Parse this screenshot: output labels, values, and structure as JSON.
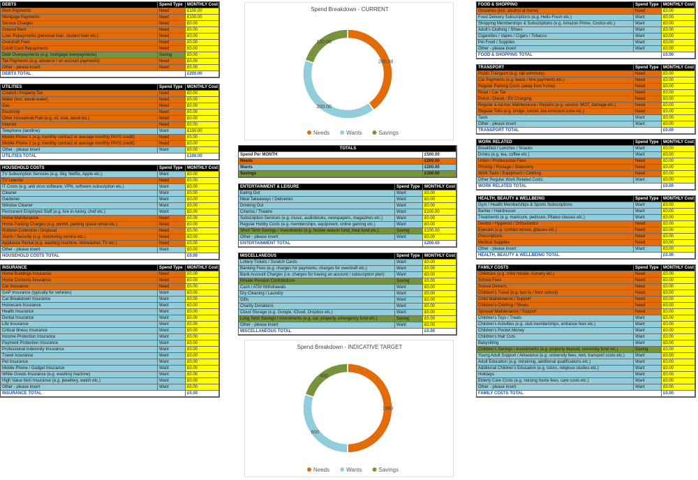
{
  "type_colors": {
    "Need": "#e36c0a",
    "Want": "#92cddc",
    "Saving": "#77933c"
  },
  "tables": [
    {
      "title": "DEBTS",
      "type_header": "Spend Type",
      "cost_header": "MONTHLY Cost",
      "rows": [
        [
          "Rent Payments",
          "Need",
          "£100.00"
        ],
        [
          "Mortgage Payments",
          "Need",
          "£100.00"
        ],
        [
          "Service Charges",
          "Need",
          "£0.00"
        ],
        [
          "Ground Rent",
          "Need",
          "£0.00"
        ],
        [
          "Loan Repayments (personal loan, student loan etc.)",
          "Need",
          "£0.00"
        ],
        [
          "Overdraft Fees",
          "Need",
          "£0.00"
        ],
        [
          "Credit Card Repayments",
          "Need",
          "£0.00"
        ],
        [
          "Debt Overpayments (e.g. mortgage overpayments)",
          "Saving",
          "£0.00"
        ],
        [
          "Tax Payments (e.g. advance / on account payments)",
          "Need",
          "£0.00"
        ],
        [
          "Other - please insert",
          "Need",
          "£0.00"
        ]
      ],
      "total": [
        "DEBTS TOTAL",
        "£200.00"
      ]
    },
    {
      "title": "UTILITIES",
      "type_header": "Spend Type",
      "cost_header": "MONTHLY Cost",
      "rows": [
        [
          "Council / Property Tax",
          "Need",
          "£0.00"
        ],
        [
          "Water (incl. waste water)",
          "Need",
          "£0.00"
        ],
        [
          "Gas",
          "Need",
          "£0.00"
        ],
        [
          "Electricity",
          "Need",
          "£0.00"
        ],
        [
          "Other Household Fuel (e.g. oil, coal, wood etc.)",
          "Need",
          "£0.00"
        ],
        [
          "Internet",
          "Need",
          "£0.00"
        ],
        [
          "Telephone (landline)",
          "Want",
          "£100.00"
        ],
        [
          "Mobile Phone 1 (e.g. monthly contract or average monthly PAYG credit)",
          "Need",
          "£0.00"
        ],
        [
          "Mobile Phone 2 (e.g. monthly contract or average monthly PAYG credit)",
          "Need",
          "£0.00"
        ],
        [
          "Other - please insert",
          "Want",
          "£0.00"
        ]
      ],
      "total": [
        "UTILITIES TOTAL",
        "£100.00"
      ]
    },
    {
      "title": "HOUSEHOLD COSTS",
      "type_header": "Spend Type",
      "cost_header": "MONTHLY Cost",
      "rows": [
        [
          "TV Subscription Services (e.g. Sky, Netflix, Apple etc.)",
          "Want",
          "£0.00"
        ],
        [
          "TV License",
          "Need",
          "£0.00"
        ],
        [
          "IT Costs (e.g. anti virus software, VPN, software subscription etc.)",
          "Want",
          "£0.00"
        ],
        [
          "Cleaner",
          "Want",
          "£0.00"
        ],
        [
          "Gardener",
          "Want",
          "£0.00"
        ],
        [
          "Window Cleaner",
          "Want",
          "£0.00"
        ],
        [
          "Permanent Employed Staff (e.g. live in nanny, chef etc.)",
          "Want",
          "£0.00"
        ],
        [
          "Home Maintenance",
          "Need",
          "£0.00"
        ],
        [
          "Home Parking Charges (e.g. permit, parking space rental etc.)",
          "Need",
          "£0.00"
        ],
        [
          "Rubbish Collection / Disposal",
          "Need",
          "£0.00"
        ],
        [
          "Alarm / Security (e.g. monitoring service etc.)",
          "Need",
          "£0.00"
        ],
        [
          "Appliance Rental (e.g. washing machine, dishwasher, TV etc.)",
          "Need",
          "£0.00"
        ],
        [
          "Other - please insert",
          "Want",
          "£0.00"
        ]
      ],
      "total": [
        "HOUSEHOLD COSTS TOTAL",
        "£0.00"
      ]
    },
    {
      "title": "INSURANCE",
      "type_header": "Spend Type",
      "cost_header": "MONTHLY Cost",
      "rows": [
        [
          "Home Buildings Insurance",
          "Need",
          "£0.00"
        ],
        [
          "Home Contents Insurance",
          "Need",
          "£0.00"
        ],
        [
          "Car Insurance",
          "Need",
          "£0.00"
        ],
        [
          "GAP Insurance (typically for vehicles)",
          "Want",
          "£0.00"
        ],
        [
          "Car Breakdown Insurance",
          "Want",
          "£0.00"
        ],
        [
          "Homecare Insurance",
          "Want",
          "£0.00"
        ],
        [
          "Health Insurance",
          "Want",
          "£0.00"
        ],
        [
          "Dental Insurance",
          "Want",
          "£0.00"
        ],
        [
          "Life Insurance",
          "Want",
          "£0.00"
        ],
        [
          "Critical Illness Insurance",
          "Want",
          "£0.00"
        ],
        [
          "Income Protection Insurance",
          "Want",
          "£0.00"
        ],
        [
          "Payment Protection Insurance",
          "Want",
          "£0.00"
        ],
        [
          "Professional Indemnity Insurance",
          "Want",
          "£0.00"
        ],
        [
          "Travel Insurance",
          "Want",
          "£0.00"
        ],
        [
          "Pet Insurance",
          "Want",
          "£0.00"
        ],
        [
          "Mobile Phone / Gadget Insurance",
          "Want",
          "£0.00"
        ],
        [
          "White Goods Insurance (e.g. washing machine)",
          "Want",
          "£0.00"
        ],
        [
          "High Value Item Insurance (e.g. jewellery, watch etc.)",
          "Want",
          "£0.00"
        ],
        [
          "Other - please insert",
          "Want",
          "£0.00"
        ]
      ],
      "total": [
        "INSURANCE TOTAL",
        "£0.00"
      ]
    },
    {
      "title": "ENTERTAINMENT & LEISURE",
      "type_header": "Spend Type",
      "cost_header": "MONTHLY Cost",
      "rows": [
        [
          "Eating Out",
          "Want",
          "£0.00"
        ],
        [
          "Meal Takeaways / Deliveries",
          "Want",
          "£0.00"
        ],
        [
          "Drinking Out",
          "Want",
          "£0.00"
        ],
        [
          "Cinema / Theatre",
          "Want",
          "£100.00"
        ],
        [
          "Subscription Services (e.g. music, audiobooks, newspapers, magazines etc.)",
          "Want",
          "£0.00"
        ],
        [
          "Regular Hobby Costs (e.g. memberships, equipment, online gaming etc.)",
          "Want",
          "£0.00"
        ],
        [
          "Short Term Savings / Investments (e.g. festive season fund, treat fund etc.)",
          "Saving",
          "£100.00"
        ],
        [
          "Other - please insert",
          "Want",
          "£0.00"
        ]
      ],
      "total": [
        "ENTERTAINMENT TOTAL",
        "£200.00"
      ]
    },
    {
      "title": "MISCELLANEOUS",
      "type_header": "Spend Type",
      "cost_header": "MONTHLY Cost",
      "rows": [
        [
          "Lottery Tickets / Scratch Cards",
          "Want",
          "£0.00"
        ],
        [
          "Banking Fees (e.g. charges for payments, charges for overdraft etc.)",
          "Want",
          "£0.00"
        ],
        [
          "Bank Account Charges (i.e. charges for having an account / subscription plan)",
          "Want",
          "£0.00"
        ],
        [
          "Private Pension Contributions",
          "Saving",
          "£0.00"
        ],
        [
          "Cash / ATM Withdrawals",
          "Want",
          "£0.00"
        ],
        [
          "Dry Cleaning / Laundry",
          "Want",
          "£0.00"
        ],
        [
          "Gifts",
          "Want",
          "£0.00"
        ],
        [
          "Charity Donations",
          "Want",
          "£0.00"
        ],
        [
          "Cloud Storage (e.g. Google, iCloud, Dropbox etc.)",
          "Want",
          "£0.00"
        ],
        [
          "Long Term Savings / Investments (e.g. car, property, emergency fund etc.)",
          "Saving",
          "£0.00"
        ],
        [
          "Other - please insert",
          "Want",
          "£0.00"
        ]
      ],
      "total": [
        "MISCELLANEOUS TOTAL",
        "£0.00"
      ]
    },
    {
      "title": "FOOD & SHOPPING",
      "type_header": "Spend Type",
      "cost_header": "MONTHLY Cost",
      "rows": [
        [
          "Groceries (incl. alcohol at home)",
          "Need",
          "£0.00"
        ],
        [
          "Food Delivery Subscriptions (e.g. Hello Fresh etc.)",
          "Want",
          "£0.00"
        ],
        [
          "Shopping Memberships & Subscriptions (e.g. Amazon Prime, Costco etc.)",
          "Want",
          "£0.00"
        ],
        [
          "Adult's Clothing / Shoes",
          "Want",
          "£0.00"
        ],
        [
          "Cigarettes / Vapes / Cigars / Tobacco",
          "Want",
          "£0.00"
        ],
        [
          "Pet Food / Supplies",
          "Want",
          "£0.00"
        ],
        [
          "Other - please insert",
          "Want",
          "£0.00"
        ]
      ],
      "total": [
        "FOOD & SHOPPING TOTAL",
        "£0.00"
      ]
    },
    {
      "title": "TRANSPORT",
      "type_header": "Spend Type",
      "cost_header": "MONTHLY Cost",
      "rows": [
        [
          "Public Transport (e.g. rail commute)",
          "Need",
          "£0.00"
        ],
        [
          "Car Payments (e.g. lease / hire payments etc.)",
          "Need",
          "£0.00"
        ],
        [
          "Regular Parking Costs (away from home)",
          "Need",
          "£0.00"
        ],
        [
          "Road / Car Tax",
          "Need",
          "£0.00"
        ],
        [
          "Petrol / Diesel / EV Charging",
          "Need",
          "£0.00"
        ],
        [
          "Regular & Ad-hoc Maintenance / Repairs (e.g. service, MOT, damage etc.)",
          "Need",
          "£0.00"
        ],
        [
          "Regular Tolls (e.g. bridge, tunnel, low emission zone etc.)",
          "Need",
          "£0.00"
        ],
        [
          "Taxis",
          "Want",
          "£0.00"
        ],
        [
          "Other - please insert",
          "Want",
          "£0.00"
        ]
      ],
      "total": [
        "TRANSPORT TOTAL",
        "£0.00"
      ]
    },
    {
      "title": "WORK RELATED",
      "type_header": "Spend Type",
      "cost_header": "MONTHLY Cost",
      "rows": [
        [
          "Breakfast / Lunches / Snacks",
          "Want",
          "£0.00"
        ],
        [
          "Drinks (e.g. tea, coffee etc.)",
          "Want",
          "£0.00"
        ],
        [
          "Union / Professional Fees",
          "Need",
          "£0.00"
        ],
        [
          "Printing / Postage / Stationery",
          "Need",
          "£0.00"
        ],
        [
          "Work Tools / Equipment / Clothing",
          "Need",
          "£0.00"
        ],
        [
          "Other Regular Work Related Costs",
          "Want",
          "£0.00"
        ]
      ],
      "total": [
        "WORK RELATED TOTAL",
        "£0.00"
      ]
    },
    {
      "title": "HEALTH, BEAUTY & WELLBEING",
      "type_header": "Spend Type",
      "cost_header": "MONTHLY Cost",
      "rows": [
        [
          "Gym / Health Memberships & Sports Subscriptions",
          "Want",
          "£0.00"
        ],
        [
          "Barber / Hairdresser",
          "Want",
          "£0.00"
        ],
        [
          "Treatments (e.g. manicure, pedicure, Pilates classes etc.)",
          "Want",
          "£0.00"
        ],
        [
          "Dentist / Hygienist / Orthodontist",
          "Need",
          "£0.00"
        ],
        [
          "Eyecare (e.g. contact lenses, glasses etc.)",
          "Need",
          "£0.00"
        ],
        [
          "Prescriptions",
          "Need",
          "£0.00"
        ],
        [
          "Medical Supplies",
          "Need",
          "£0.00"
        ],
        [
          "Other - please insert",
          "Want",
          "£0.00"
        ]
      ],
      "total": [
        "HEALTH, BEAUTY & WELLBEING TOTAL",
        "£0.00"
      ]
    },
    {
      "title": "FAMILY COSTS",
      "type_header": "Spend Type",
      "cost_header": "MONTHLY Cost",
      "rows": [
        [
          "Childcare (e.g. child minder, nursery etc.)",
          "Need",
          "£0.00"
        ],
        [
          "School Fees",
          "Need",
          "£0.00"
        ],
        [
          "School Dinners",
          "Need",
          "£0.00"
        ],
        [
          "Children's Travel (e.g. bus to / from school)",
          "Need",
          "£0.00"
        ],
        [
          "Child Maintenance / Support",
          "Need",
          "£0.00"
        ],
        [
          "Children's Clothing / Shoes",
          "Need",
          "£0.00"
        ],
        [
          "Spousal Maintenance / Support",
          "Need",
          "£0.00"
        ],
        [
          "Children's Toys / Treats",
          "Want",
          "£0.00"
        ],
        [
          "Children's Activities (e.g. club memberships, entrance fees etc.)",
          "Want",
          "£0.00"
        ],
        [
          "Children's Pocket Money",
          "Want",
          "£0.00"
        ],
        [
          "Children's Hair Cuts",
          "Want",
          "£0.00"
        ],
        [
          "Babysitting",
          "Want",
          "£0.00"
        ],
        [
          "Children's Savings / Investments (e.g. property deposit, university fund etc.)",
          "Saving",
          "£0.00"
        ],
        [
          "Young Adult Support / Allowance (e.g. university fees, rent, transport costs etc.)",
          "Want",
          "£0.00"
        ],
        [
          "Adult Education (e.g. retraining, additional qualifications etc.)",
          "Want",
          "£0.00"
        ],
        [
          "Additional Children's Education (e.g. tutors, religious studies etc.)",
          "Want",
          "£0.00"
        ],
        [
          "Holidays",
          "Want",
          "£0.00"
        ],
        [
          "Elderly Care Costs (e.g. nursing home fees, care costs etc.)",
          "Want",
          "£0.00"
        ],
        [
          "Other - please insert",
          "Want",
          "£0.00"
        ]
      ],
      "total": [
        "FAMILY COSTS TOTAL",
        "£0.00"
      ]
    }
  ],
  "totals": {
    "title": "TOTALS",
    "rows": [
      [
        "Spend Per MONTH",
        "£500.00"
      ],
      [
        "Needs",
        "£200.00"
      ],
      [
        "Wants",
        "£200.00"
      ],
      [
        "Savings",
        "£100.00"
      ]
    ],
    "colors": [
      "#ffffff",
      "#e36c0a",
      "#92cddc",
      "#77933c"
    ]
  },
  "chart_data": [
    {
      "type": "donut",
      "title": "Spend Breakdown - CURRENT",
      "categories": [
        "Needs",
        "Wants",
        "Savings"
      ],
      "values": [
        200,
        200,
        100
      ],
      "value_labels": [
        "200.00",
        "200.00",
        "100.00"
      ],
      "colors": [
        "#e36c0a",
        "#92cddc",
        "#77933c"
      ],
      "legend": "bottom"
    },
    {
      "type": "donut",
      "title": "Spend Breakdown - INDICATIVE TARGET",
      "categories": [
        "Needs",
        "Wants",
        "Savings"
      ],
      "values": [
        1000,
        600,
        400
      ],
      "colors": [
        "#e36c0a",
        "#92cddc",
        "#77933c"
      ],
      "legend": "bottom"
    }
  ]
}
